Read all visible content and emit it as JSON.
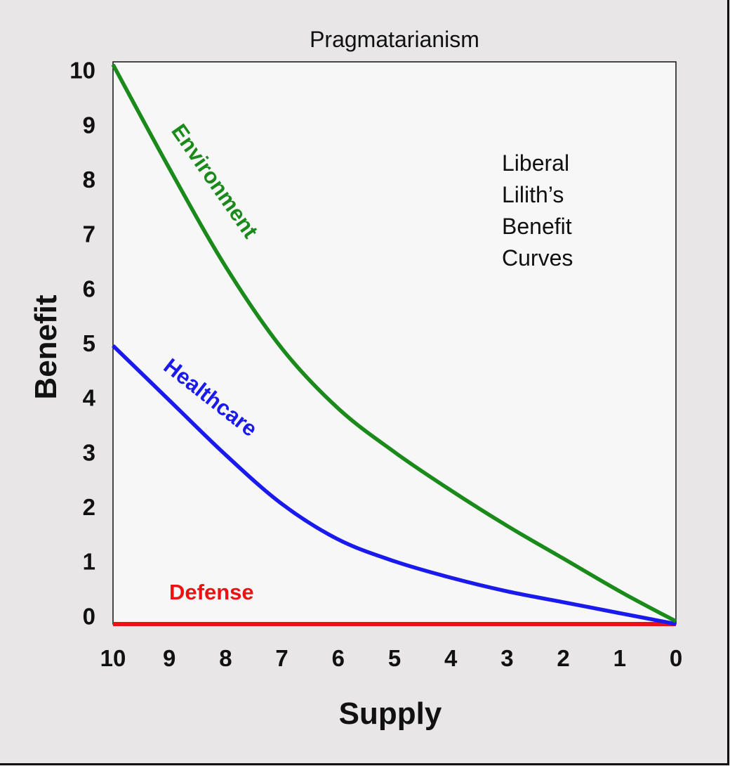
{
  "chart_data": {
    "type": "line",
    "title": "Pragmatarianism",
    "xlabel": "Supply",
    "ylabel": "Benefit",
    "xlim": [
      10,
      0
    ],
    "ylim": [
      -0.15,
      10.15
    ],
    "x_ticks": [
      "10",
      "9",
      "8",
      "7",
      "6",
      "5",
      "4",
      "3",
      "2",
      "1",
      "0"
    ],
    "y_ticks": [
      "0",
      "1",
      "2",
      "3",
      "4",
      "5",
      "6",
      "7",
      "8",
      "9",
      "10"
    ],
    "x_reversed": true,
    "grid": false,
    "legend": "none",
    "annotation": [
      "Liberal",
      "Lilith’s",
      "Benefit",
      "Curves"
    ],
    "series": [
      {
        "name": "Environment",
        "color": "#1a8a1a",
        "x": [
          10,
          9,
          8,
          7,
          6,
          5,
          4,
          3,
          2,
          1,
          0
        ],
        "y": [
          10.1,
          8.2,
          6.4,
          4.9,
          3.8,
          3.0,
          2.3,
          1.65,
          1.05,
          0.45,
          -0.1
        ]
      },
      {
        "name": "Healthcare",
        "color": "#1a1aee",
        "x": [
          10,
          9,
          8,
          7,
          6,
          5,
          4,
          3,
          2,
          1,
          0
        ],
        "y": [
          4.95,
          3.95,
          2.95,
          2.05,
          1.4,
          1.0,
          0.7,
          0.45,
          0.25,
          0.05,
          -0.15
        ]
      },
      {
        "name": "Defense",
        "color": "#ee1111",
        "x": [
          10,
          0
        ],
        "y": [
          -0.15,
          -0.15
        ]
      }
    ]
  }
}
